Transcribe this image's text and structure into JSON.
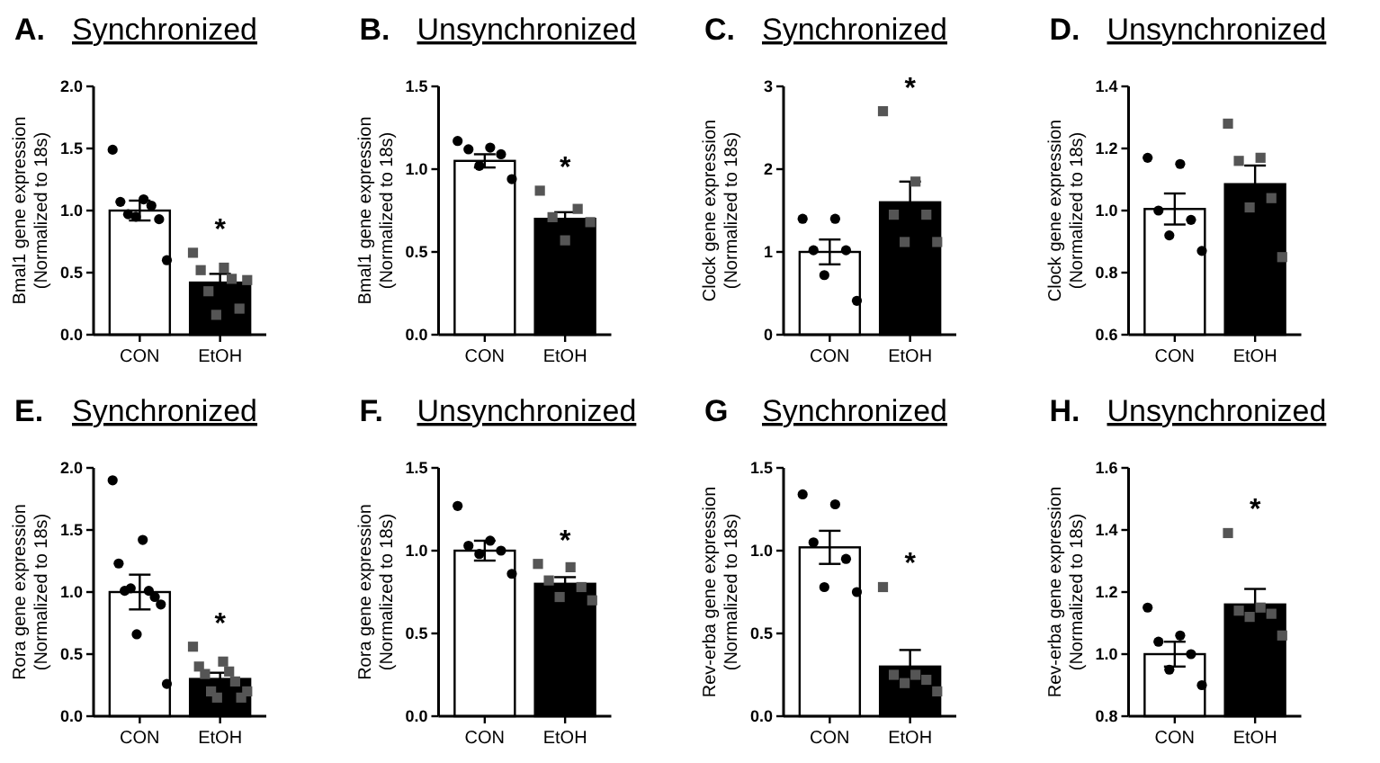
{
  "chart_data": [
    {
      "type": "bar",
      "title": "A. Synchronized",
      "ylabel": "Bmal1 gene expression\n(Normalized to 18s)",
      "categories": [
        "CON",
        "EtOH"
      ],
      "ylim": [
        0,
        2
      ],
      "yticks": [
        {
          "value": 0,
          "label": "0.0"
        },
        {
          "value": 0.5,
          "label": "0.5"
        },
        {
          "value": 1,
          "label": "1.0"
        },
        {
          "value": 1.5,
          "label": "1.5"
        },
        {
          "value": 2,
          "label": "2.0"
        }
      ],
      "annotations": [
        "*"
      ],
      "series": [
        {
          "colors": [
            "#ffffff",
            "#000000"
          ],
          "values": [
            1.0,
            0.42
          ],
          "errors": [
            0.08,
            0.07
          ]
        },
        {
          "type": "scatter",
          "marker": "circle",
          "color": "#000000",
          "x": [
            "CON",
            "CON",
            "CON",
            "CON",
            "CON",
            "CON",
            "CON",
            "CON"
          ],
          "values": [
            1.49,
            1.09,
            1.07,
            1.04,
            0.97,
            0.93,
            0.95,
            0.6
          ]
        },
        {
          "type": "scatter",
          "marker": "square",
          "color": "#555555",
          "x": [
            "EtOH",
            "EtOH",
            "EtOH",
            "EtOH",
            "EtOH",
            "EtOH",
            "EtOH",
            "EtOH"
          ],
          "values": [
            0.66,
            0.54,
            0.52,
            0.45,
            0.35,
            0.21,
            0.16,
            0.44
          ]
        }
      ]
    },
    {
      "type": "bar",
      "title": "B. Unsynchronized",
      "ylabel": "Bmal1 gene expression\n(Normalized to 18s)",
      "categories": [
        "CON",
        "EtOH"
      ],
      "ylim": [
        0,
        1.5
      ],
      "yticks": [
        {
          "value": 0,
          "label": "0.0"
        },
        {
          "value": 0.5,
          "label": "0.5"
        },
        {
          "value": 1,
          "label": "1.0"
        },
        {
          "value": 1.5,
          "label": "1.5"
        }
      ],
      "annotations": [
        "*"
      ],
      "series": [
        {
          "colors": [
            "#ffffff",
            "#000000"
          ],
          "values": [
            1.05,
            0.7
          ],
          "errors": [
            0.04,
            0.04
          ]
        },
        {
          "type": "scatter",
          "marker": "circle",
          "color": "#000000",
          "x": [
            "CON",
            "CON",
            "CON",
            "CON",
            "CON",
            "CON"
          ],
          "values": [
            1.17,
            1.13,
            1.12,
            1.09,
            1.02,
            0.94
          ]
        },
        {
          "type": "scatter",
          "marker": "square",
          "color": "#555555",
          "x": [
            "EtOH",
            "EtOH",
            "EtOH",
            "EtOH",
            "EtOH"
          ],
          "values": [
            0.87,
            0.76,
            0.71,
            0.68,
            0.57
          ]
        }
      ]
    },
    {
      "type": "bar",
      "title": "C. Synchronized",
      "ylabel": "Clock gene expression\n(Normalized to 18s)",
      "categories": [
        "CON",
        "EtOH"
      ],
      "ylim": [
        0,
        3
      ],
      "yticks": [
        0,
        1,
        2,
        3
      ],
      "annotations": [
        "*"
      ],
      "series": [
        {
          "colors": [
            "#ffffff",
            "#000000"
          ],
          "values": [
            1.0,
            1.6
          ],
          "errors": [
            0.15,
            0.25
          ]
        },
        {
          "type": "scatter",
          "marker": "circle",
          "color": "#000000",
          "x": [
            "CON",
            "CON",
            "CON",
            "CON",
            "CON",
            "CON"
          ],
          "values": [
            1.4,
            1.4,
            1.02,
            1.02,
            0.72,
            0.41
          ]
        },
        {
          "type": "scatter",
          "marker": "square",
          "color": "#555555",
          "x": [
            "EtOH",
            "EtOH",
            "EtOH",
            "EtOH",
            "EtOH",
            "EtOH"
          ],
          "values": [
            2.7,
            1.85,
            1.45,
            1.45,
            1.12,
            1.12
          ]
        }
      ]
    },
    {
      "type": "bar",
      "title": "D. Unsynchronized",
      "ylabel": "Clock gene expression\n(Normalized to 18s)",
      "categories": [
        "CON",
        "EtOH"
      ],
      "ylim": [
        0.6,
        1.4
      ],
      "yticks": [
        {
          "value": 0.6,
          "label": "0.6"
        },
        {
          "value": 0.8,
          "label": "0.8"
        },
        {
          "value": 1,
          "label": "1.0"
        },
        {
          "value": 1.2,
          "label": "1.2"
        },
        {
          "value": 1.4,
          "label": "1.4"
        }
      ],
      "series": [
        {
          "colors": [
            "#ffffff",
            "#000000"
          ],
          "values": [
            1.005,
            1.085
          ],
          "errors": [
            0.05,
            0.06
          ]
        },
        {
          "type": "scatter",
          "marker": "circle",
          "color": "#000000",
          "x": [
            "CON",
            "CON",
            "CON",
            "CON",
            "CON",
            "CON"
          ],
          "values": [
            1.17,
            1.15,
            1.0,
            0.97,
            0.92,
            0.87
          ]
        },
        {
          "type": "scatter",
          "marker": "square",
          "color": "#555555",
          "x": [
            "EtOH",
            "EtOH",
            "EtOH",
            "EtOH",
            "EtOH",
            "EtOH"
          ],
          "values": [
            1.28,
            1.17,
            1.16,
            1.04,
            1.01,
            0.85
          ]
        }
      ]
    },
    {
      "type": "bar",
      "title": "E. Synchronized",
      "ylabel": "Rora gene expression\n(Normalized to 18s)",
      "categories": [
        "CON",
        "EtOH"
      ],
      "ylim": [
        0,
        2
      ],
      "yticks": [
        {
          "value": 0,
          "label": "0.0"
        },
        {
          "value": 0.5,
          "label": "0.5"
        },
        {
          "value": 1,
          "label": "1.0"
        },
        {
          "value": 1.5,
          "label": "1.5"
        },
        {
          "value": 2,
          "label": "2.0"
        }
      ],
      "annotations": [
        "*"
      ],
      "series": [
        {
          "colors": [
            "#ffffff",
            "#000000"
          ],
          "values": [
            1.0,
            0.3
          ],
          "errors": [
            0.14,
            0.05
          ]
        },
        {
          "type": "scatter",
          "marker": "circle",
          "color": "#000000",
          "x": [
            "CON",
            "CON",
            "CON",
            "CON",
            "CON",
            "CON",
            "CON",
            "CON",
            "CON",
            "CON"
          ],
          "values": [
            1.9,
            1.42,
            1.23,
            1.01,
            1.01,
            0.96,
            1.03,
            0.9,
            0.66,
            0.26
          ]
        },
        {
          "type": "scatter",
          "marker": "square",
          "color": "#555555",
          "x": [
            "EtOH",
            "EtOH",
            "EtOH",
            "EtOH",
            "EtOH",
            "EtOH",
            "EtOH",
            "EtOH",
            "EtOH",
            "EtOH"
          ],
          "values": [
            0.56,
            0.44,
            0.4,
            0.36,
            0.34,
            0.28,
            0.2,
            0.15,
            0.15,
            0.2
          ]
        }
      ]
    },
    {
      "type": "bar",
      "title": "F. Unsynchronized",
      "ylabel": "Rora gene expression\n(Normalized to 18s)",
      "categories": [
        "CON",
        "EtOH"
      ],
      "ylim": [
        0,
        1.5
      ],
      "yticks": [
        {
          "value": 0,
          "label": "0.0"
        },
        {
          "value": 0.5,
          "label": "0.5"
        },
        {
          "value": 1,
          "label": "1.0"
        },
        {
          "value": 1.5,
          "label": "1.5"
        }
      ],
      "annotations": [
        "*"
      ],
      "series": [
        {
          "colors": [
            "#ffffff",
            "#000000"
          ],
          "values": [
            1.0,
            0.8
          ],
          "errors": [
            0.06,
            0.04
          ]
        },
        {
          "type": "scatter",
          "marker": "circle",
          "color": "#000000",
          "x": [
            "CON",
            "CON",
            "CON",
            "CON",
            "CON",
            "CON"
          ],
          "values": [
            1.27,
            1.06,
            1.03,
            1.0,
            0.98,
            0.86
          ]
        },
        {
          "type": "scatter",
          "marker": "square",
          "color": "#555555",
          "x": [
            "EtOH",
            "EtOH",
            "EtOH",
            "EtOH",
            "EtOH",
            "EtOH"
          ],
          "values": [
            0.92,
            0.9,
            0.82,
            0.78,
            0.72,
            0.7
          ]
        }
      ]
    },
    {
      "type": "bar",
      "title": "G Synchronized",
      "ylabel": "Rev-erba gene expression\n(Normalized to 18s)",
      "categories": [
        "CON",
        "EtOH"
      ],
      "ylim": [
        0,
        1.5
      ],
      "yticks": [
        {
          "value": 0,
          "label": "0.0"
        },
        {
          "value": 0.5,
          "label": "0.5"
        },
        {
          "value": 1,
          "label": "1.0"
        },
        {
          "value": 1.5,
          "label": "1.5"
        }
      ],
      "annotations": [
        "*"
      ],
      "series": [
        {
          "colors": [
            "#ffffff",
            "#000000"
          ],
          "values": [
            1.02,
            0.3
          ],
          "errors": [
            0.1,
            0.1
          ]
        },
        {
          "type": "scatter",
          "marker": "circle",
          "color": "#000000",
          "x": [
            "CON",
            "CON",
            "CON",
            "CON",
            "CON",
            "CON"
          ],
          "values": [
            1.34,
            1.28,
            1.05,
            0.95,
            0.78,
            0.75
          ]
        },
        {
          "type": "scatter",
          "marker": "square",
          "color": "#555555",
          "x": [
            "EtOH",
            "EtOH",
            "EtOH",
            "EtOH",
            "EtOH",
            "EtOH"
          ],
          "values": [
            0.78,
            0.25,
            0.25,
            0.22,
            0.2,
            0.15
          ]
        }
      ]
    },
    {
      "type": "bar",
      "title": "H. Unsynchronized",
      "ylabel": "Rev-erba gene expression\n(Normalized to 18s)",
      "categories": [
        "CON",
        "EtOH"
      ],
      "ylim": [
        0.8,
        1.6
      ],
      "yticks": [
        {
          "value": 0.8,
          "label": "0.8"
        },
        {
          "value": 1,
          "label": "1.0"
        },
        {
          "value": 1.2,
          "label": "1.2"
        },
        {
          "value": 1.4,
          "label": "1.4"
        },
        {
          "value": 1.6,
          "label": "1.6"
        }
      ],
      "annotations": [
        "*"
      ],
      "series": [
        {
          "colors": [
            "#ffffff",
            "#000000"
          ],
          "values": [
            1.0,
            1.16
          ],
          "errors": [
            0.04,
            0.05
          ]
        },
        {
          "type": "scatter",
          "marker": "circle",
          "color": "#000000",
          "x": [
            "CON",
            "CON",
            "CON",
            "CON",
            "CON",
            "CON"
          ],
          "values": [
            1.15,
            1.06,
            1.04,
            1.0,
            0.95,
            0.9
          ]
        },
        {
          "type": "scatter",
          "marker": "square",
          "color": "#555555",
          "x": [
            "EtOH",
            "EtOH",
            "EtOH",
            "EtOH",
            "EtOH",
            "EtOH"
          ],
          "values": [
            1.39,
            1.15,
            1.14,
            1.13,
            1.12,
            1.06
          ]
        }
      ]
    }
  ]
}
